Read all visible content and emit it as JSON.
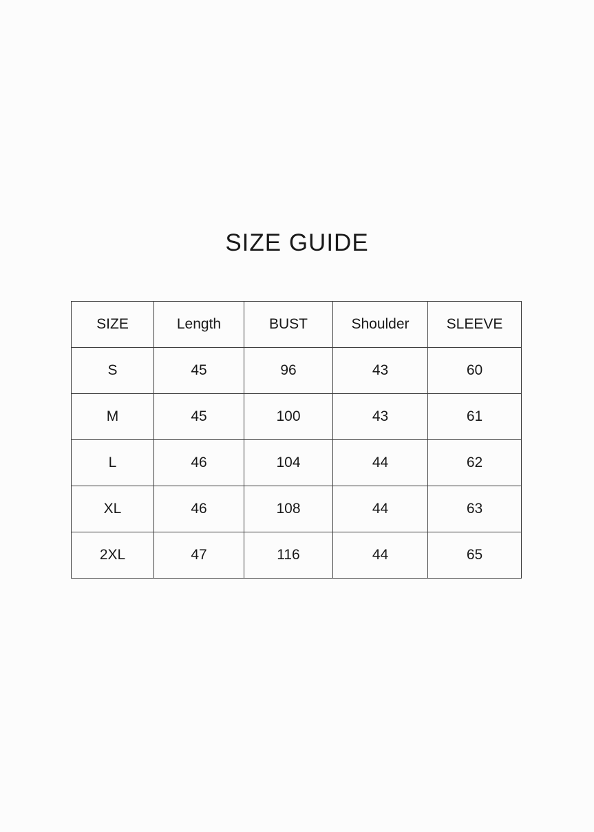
{
  "title": "SIZE GUIDE",
  "chart_data": {
    "type": "table",
    "title": "SIZE GUIDE",
    "columns": [
      "SIZE",
      "Length",
      "BUST",
      "Shoulder",
      "SLEEVE"
    ],
    "rows": [
      [
        "S",
        "45",
        "96",
        "43",
        "60"
      ],
      [
        "M",
        "45",
        "100",
        "43",
        "61"
      ],
      [
        "L",
        "46",
        "104",
        "44",
        "62"
      ],
      [
        "XL",
        "46",
        "108",
        "44",
        "63"
      ],
      [
        "2XL",
        "47",
        "116",
        "44",
        "65"
      ]
    ]
  },
  "colors": {
    "background": "#fcfcfc",
    "border": "#3e3e3e",
    "text": "#191919"
  }
}
